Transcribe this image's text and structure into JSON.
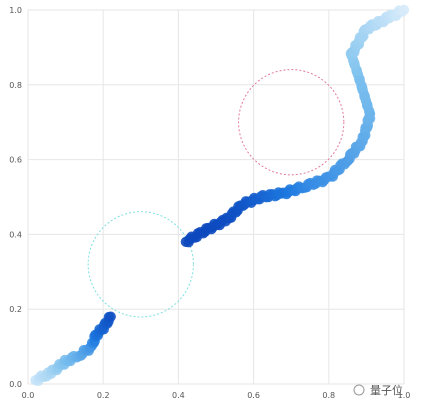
{
  "chart_data": {
    "type": "scatter",
    "title": "",
    "xlabel": "",
    "ylabel": "",
    "xlim": [
      0,
      1
    ],
    "ylim": [
      0,
      1
    ],
    "grid": true,
    "x_ticks": [
      "0.0",
      "0.2",
      "0.4",
      "0.6",
      "0.8",
      "1.0"
    ],
    "y_ticks": [
      "0.0",
      "0.2",
      "0.4",
      "0.6",
      "0.8",
      "1.0"
    ],
    "colorscale": [
      "#0a3fb8",
      "#1e7ae0",
      "#7fc2ee",
      "#e6f2fc"
    ],
    "series": [
      {
        "segment": 1,
        "points": [
          {
            "x": 0.02,
            "y": 0.01,
            "t": 0.9
          },
          {
            "x": 0.06,
            "y": 0.03,
            "t": 0.8
          },
          {
            "x": 0.1,
            "y": 0.06,
            "t": 0.65
          },
          {
            "x": 0.14,
            "y": 0.08,
            "t": 0.55
          },
          {
            "x": 0.17,
            "y": 0.1,
            "t": 0.45
          },
          {
            "x": 0.18,
            "y": 0.13,
            "t": 0.3
          },
          {
            "x": 0.2,
            "y": 0.15,
            "t": 0.2
          },
          {
            "x": 0.22,
            "y": 0.18,
            "t": 0.1
          }
        ]
      },
      {
        "segment": 2,
        "points": [
          {
            "x": 0.42,
            "y": 0.38,
            "t": 0.05
          },
          {
            "x": 0.47,
            "y": 0.41,
            "t": 0.05
          },
          {
            "x": 0.53,
            "y": 0.44,
            "t": 0.08
          },
          {
            "x": 0.57,
            "y": 0.48,
            "t": 0.12
          },
          {
            "x": 0.62,
            "y": 0.5,
            "t": 0.2
          },
          {
            "x": 0.68,
            "y": 0.51,
            "t": 0.3
          },
          {
            "x": 0.74,
            "y": 0.53,
            "t": 0.4
          },
          {
            "x": 0.8,
            "y": 0.55,
            "t": 0.45
          },
          {
            "x": 0.85,
            "y": 0.6,
            "t": 0.5
          },
          {
            "x": 0.89,
            "y": 0.65,
            "t": 0.55
          },
          {
            "x": 0.91,
            "y": 0.72,
            "t": 0.6
          },
          {
            "x": 0.88,
            "y": 0.82,
            "t": 0.65
          },
          {
            "x": 0.86,
            "y": 0.88,
            "t": 0.72
          },
          {
            "x": 0.9,
            "y": 0.95,
            "t": 0.8
          },
          {
            "x": 0.96,
            "y": 0.98,
            "t": 0.88
          },
          {
            "x": 1.0,
            "y": 1.0,
            "t": 0.95
          }
        ]
      }
    ],
    "circles": [
      {
        "cx": 0.3,
        "cy": 0.32,
        "r": 0.14,
        "color": "#7ee0e0",
        "style": "dashed"
      },
      {
        "cx": 0.7,
        "cy": 0.7,
        "r": 0.14,
        "color": "#e07aa0",
        "style": "dashed"
      }
    ]
  },
  "watermark": {
    "text": "量子位"
  }
}
